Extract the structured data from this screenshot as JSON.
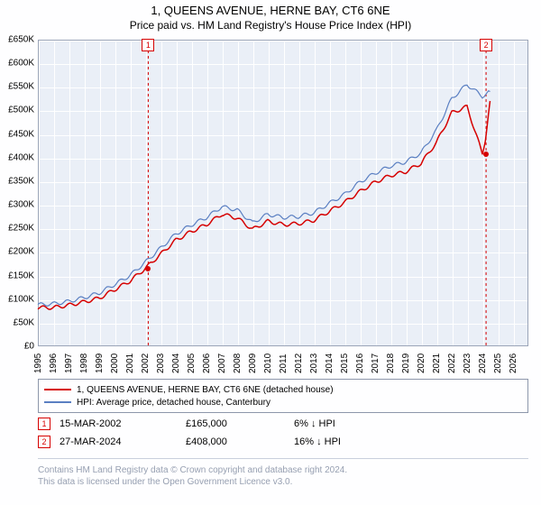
{
  "titles": {
    "line1": "1, QUEENS AVENUE, HERNE BAY, CT6 6NE",
    "line2": "Price paid vs. HM Land Registry's House Price Index (HPI)"
  },
  "chart": {
    "type": "line",
    "background_color": "#eaeff7",
    "grid_color": "#ffffff",
    "border_color": "#9aa4b8",
    "x": {
      "min": 1995,
      "max": 2027,
      "ticks": [
        1995,
        1996,
        1997,
        1998,
        1999,
        2000,
        2001,
        2002,
        2003,
        2004,
        2005,
        2006,
        2007,
        2008,
        2009,
        2010,
        2011,
        2012,
        2013,
        2014,
        2015,
        2016,
        2017,
        2018,
        2019,
        2020,
        2021,
        2022,
        2023,
        2024,
        2025,
        2026
      ]
    },
    "y": {
      "min": 0,
      "max": 650000,
      "step": 50000,
      "prefix": "£",
      "k_suffix": true
    },
    "series": [
      {
        "id": "property",
        "label": "1, QUEENS AVENUE, HERNE BAY, CT6 6NE (detached house)",
        "color": "#d60000",
        "line_width": 1.5,
        "data": [
          [
            1995,
            82000
          ],
          [
            1996,
            82000
          ],
          [
            1997,
            87000
          ],
          [
            1998,
            94000
          ],
          [
            1999,
            102000
          ],
          [
            2000,
            120000
          ],
          [
            2001,
            138000
          ],
          [
            2002,
            165000
          ],
          [
            2003,
            195000
          ],
          [
            2004,
            225000
          ],
          [
            2005,
            243000
          ],
          [
            2006,
            258000
          ],
          [
            2007,
            280000
          ],
          [
            2008,
            272000
          ],
          [
            2009,
            248000
          ],
          [
            2010,
            265000
          ],
          [
            2011,
            258000
          ],
          [
            2012,
            260000
          ],
          [
            2013,
            267000
          ],
          [
            2014,
            286000
          ],
          [
            2015,
            305000
          ],
          [
            2016,
            328000
          ],
          [
            2017,
            348000
          ],
          [
            2018,
            362000
          ],
          [
            2019,
            370000
          ],
          [
            2020,
            388000
          ],
          [
            2021,
            432000
          ],
          [
            2022,
            495000
          ],
          [
            2023,
            508000
          ],
          [
            2024,
            408000
          ],
          [
            2024.2,
            440000
          ],
          [
            2024.5,
            520000
          ]
        ]
      },
      {
        "id": "hpi",
        "label": "HPI: Average price, detached house, Canterbury",
        "color": "#5a7fc2",
        "line_width": 1.2,
        "data": [
          [
            1995,
            88000
          ],
          [
            1996,
            90000
          ],
          [
            1997,
            95000
          ],
          [
            1998,
            103000
          ],
          [
            1999,
            113000
          ],
          [
            2000,
            131000
          ],
          [
            2001,
            150000
          ],
          [
            2002,
            178000
          ],
          [
            2003,
            208000
          ],
          [
            2004,
            238000
          ],
          [
            2005,
            257000
          ],
          [
            2006,
            273000
          ],
          [
            2007,
            296000
          ],
          [
            2008,
            289000
          ],
          [
            2009,
            262000
          ],
          [
            2010,
            280000
          ],
          [
            2011,
            273000
          ],
          [
            2012,
            275000
          ],
          [
            2013,
            283000
          ],
          [
            2014,
            303000
          ],
          [
            2015,
            322000
          ],
          [
            2016,
            348000
          ],
          [
            2017,
            367000
          ],
          [
            2018,
            382000
          ],
          [
            2019,
            391000
          ],
          [
            2020,
            410000
          ],
          [
            2021,
            458000
          ],
          [
            2022,
            525000
          ],
          [
            2023,
            555000
          ],
          [
            2024,
            530000
          ],
          [
            2024.5,
            540000
          ]
        ]
      }
    ],
    "vmarkers": [
      {
        "n": "1",
        "year": 2002.2,
        "color": "#d60000"
      },
      {
        "n": "2",
        "year": 2024.24,
        "color": "#d60000"
      }
    ],
    "point_markers": [
      {
        "year": 2002.2,
        "price": 165000,
        "color": "#d60000"
      },
      {
        "year": 2024.24,
        "price": 408000,
        "color": "#d60000"
      }
    ]
  },
  "legend": {
    "rows": [
      {
        "color": "#d60000",
        "text": "1, QUEENS AVENUE, HERNE BAY, CT6 6NE (detached house)"
      },
      {
        "color": "#5a7fc2",
        "text": "HPI: Average price, detached house, Canterbury"
      }
    ]
  },
  "sales": [
    {
      "n": "1",
      "color": "#d60000",
      "date": "15-MAR-2002",
      "price": "£165,000",
      "diff": "6% ↓ HPI"
    },
    {
      "n": "2",
      "color": "#d60000",
      "date": "27-MAR-2024",
      "price": "£408,000",
      "diff": "16% ↓ HPI"
    }
  ],
  "attribution": {
    "line1": "Contains HM Land Registry data © Crown copyright and database right 2024.",
    "line2": "This data is licensed under the Open Government Licence v3.0."
  }
}
